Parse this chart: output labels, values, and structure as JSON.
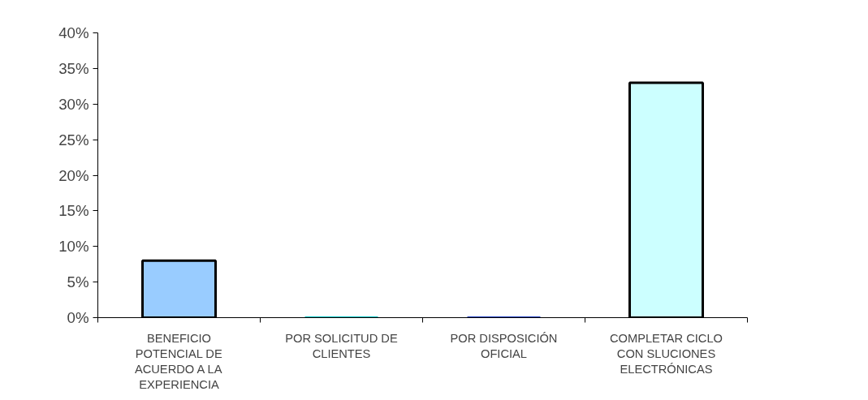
{
  "chart_data": {
    "type": "bar",
    "categories": [
      "BENEFICIO\nPOTENCIAL DE\nACUERDO A LA\nEXPERIENCIA",
      "POR SOLICITUD DE\nCLIENTES",
      "POR DISPOSICIÓN\nOFICIAL",
      "COMPLETAR CICLO\nCON SLUCIONES\nELECTRÓNICAS"
    ],
    "values": [
      8,
      0,
      0,
      33
    ],
    "colors": [
      "#99ccff",
      "#00c0c0",
      "#2040c0",
      "#ccffff"
    ],
    "ylim": [
      0,
      40
    ],
    "yticks": [
      {
        "value": 0,
        "label": "0%"
      },
      {
        "value": 5,
        "label": "5%"
      },
      {
        "value": 10,
        "label": "10%"
      },
      {
        "value": 15,
        "label": "15%"
      },
      {
        "value": 20,
        "label": "20%"
      },
      {
        "value": 25,
        "label": "25%"
      },
      {
        "value": 30,
        "label": "30%"
      },
      {
        "value": 35,
        "label": "35%"
      },
      {
        "value": 40,
        "label": "40%"
      }
    ],
    "grid": false
  }
}
